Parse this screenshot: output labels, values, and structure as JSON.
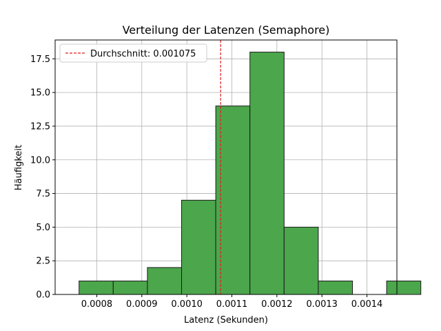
{
  "chart_data": {
    "type": "bar",
    "title": "Verteilung der Latenzen (Semaphore)",
    "xlabel": "Latenz (Sekunden)",
    "ylabel": "Häufigkeit",
    "xlim": [
      0.0007075,
      0.0014665
    ],
    "ylim": [
      0,
      18.9
    ],
    "grid": true,
    "legend_position": "top-left",
    "bar_color": "#4ca64c",
    "bar_edge_color": "#1a1a1a",
    "mean_line_color": "#e31a1c",
    "bins": [
      {
        "start": 0.000738,
        "end": 0.000828,
        "count": 1
      },
      {
        "start": 0.000828,
        "end": 0.000918,
        "count": 1
      },
      {
        "start": 0.000918,
        "end": 0.001008,
        "count": 2
      },
      {
        "start": 0.001008,
        "end": 0.001098,
        "count": 7
      },
      {
        "start": 0.001098,
        "end": 0.001188,
        "count": 14
      },
      {
        "start": 0.001188,
        "end": 0.001278,
        "count": 18
      },
      {
        "start": 0.001278,
        "end": 0.001368,
        "count": 5
      },
      {
        "start": 0.001368,
        "end": 0.001458,
        "count": 1
      },
      {
        "start": 0.001458,
        "end": 0.001548,
        "count": 0
      },
      {
        "start": 0.001548,
        "end": 0.001638,
        "count": 1
      }
    ],
    "x_ticks": [
      {
        "value": 0.0008,
        "label": "0.0008"
      },
      {
        "value": 0.0009,
        "label": "0.0009"
      },
      {
        "value": 0.001,
        "label": "0.0010"
      },
      {
        "value": 0.0011,
        "label": "0.0011"
      },
      {
        "value": 0.0012,
        "label": "0.0012"
      },
      {
        "value": 0.0013,
        "label": "0.0013"
      },
      {
        "value": 0.0014,
        "label": "0.0014"
      }
    ],
    "y_ticks": [
      {
        "value": 0.0,
        "label": "0.0"
      },
      {
        "value": 2.5,
        "label": "2.5"
      },
      {
        "value": 5.0,
        "label": "5.0"
      },
      {
        "value": 7.5,
        "label": "7.5"
      },
      {
        "value": 10.0,
        "label": "10.0"
      },
      {
        "value": 12.5,
        "label": "12.5"
      },
      {
        "value": 15.0,
        "label": "15.0"
      },
      {
        "value": 17.5,
        "label": "17.5"
      }
    ],
    "mean_line": {
      "value": 0.001075,
      "label": "Durchschnitt: 0.001075"
    }
  }
}
